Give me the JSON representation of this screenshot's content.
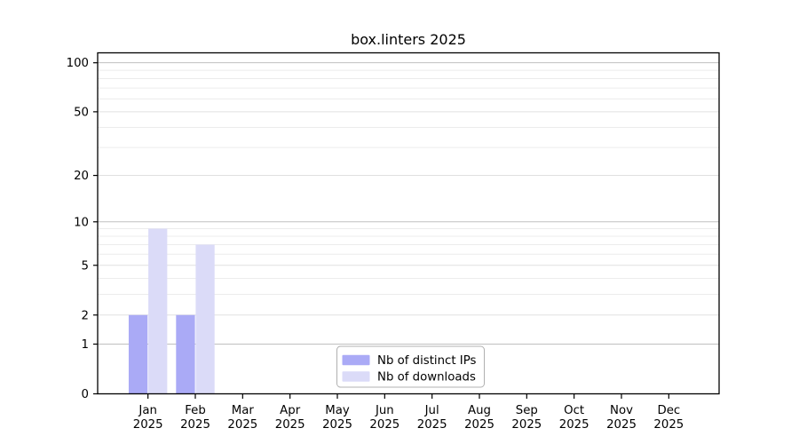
{
  "figure": {
    "background": "#ffffff"
  },
  "chart_data": {
    "type": "bar",
    "title": "box.linters 2025",
    "y_scale": "log1p",
    "categories": [
      "Jan",
      "Feb",
      "Mar",
      "Apr",
      "May",
      "Jun",
      "Jul",
      "Aug",
      "Sep",
      "Oct",
      "Nov",
      "Dec"
    ],
    "category_year": "2025",
    "series": [
      {
        "name": "Nb of distinct IPs",
        "color": "#aaaaf6",
        "values": [
          2,
          2,
          0,
          0,
          0,
          0,
          0,
          0,
          0,
          0,
          0,
          0
        ]
      },
      {
        "name": "Nb of downloads",
        "color": "#dbdbf8",
        "values": [
          9,
          7,
          0,
          0,
          0,
          0,
          0,
          0,
          0,
          0,
          0,
          0
        ]
      }
    ],
    "y_ticks": [
      0,
      1,
      2,
      5,
      10,
      20,
      50,
      100
    ],
    "y_minor_gridlines": [
      3,
      4,
      6,
      7,
      8,
      9,
      30,
      40,
      60,
      70,
      80,
      90
    ],
    "ylim": [
      0,
      115
    ],
    "grid": true,
    "legend": {
      "position": "lower center",
      "entries": [
        "Nb of distinct IPs",
        "Nb of downloads"
      ]
    },
    "colors": {
      "axis": "#000000",
      "text": "#000000",
      "grid_major_pow10": "#c0c0c0",
      "grid_major": "#e0e0e0",
      "grid_minor": "#ececec",
      "legend_border": "#b0b0b0",
      "legend_background": "#ffffff"
    }
  }
}
